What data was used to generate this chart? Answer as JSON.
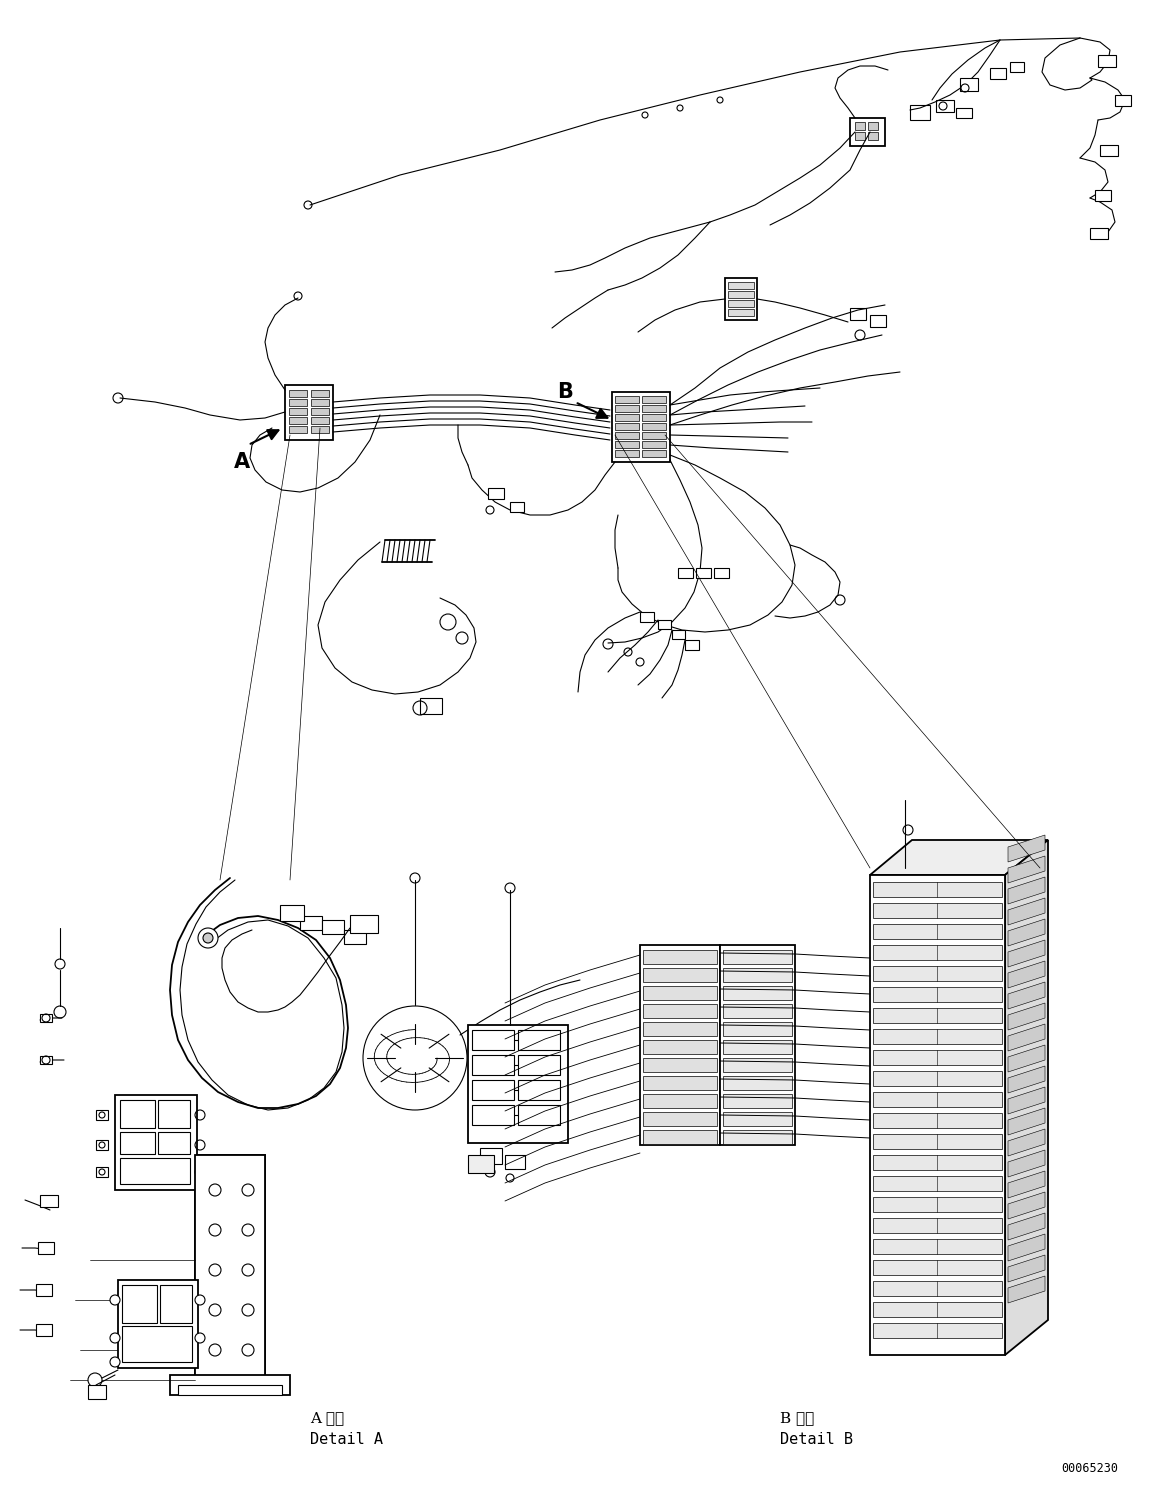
{
  "background_color": "#ffffff",
  "line_color": "#000000",
  "figure_width": 11.63,
  "figure_height": 14.88,
  "dpi": 100,
  "detail_A_text1": "A 詳細",
  "detail_A_text2": "Detail A",
  "detail_B_text1": "B 詳細",
  "detail_B_text2": "Detail B",
  "part_number": "00065230",
  "label_A": "A",
  "label_B": "B",
  "lw_hair": 0.5,
  "lw_thin": 0.8,
  "lw_med": 1.3,
  "lw_thick": 2.2
}
